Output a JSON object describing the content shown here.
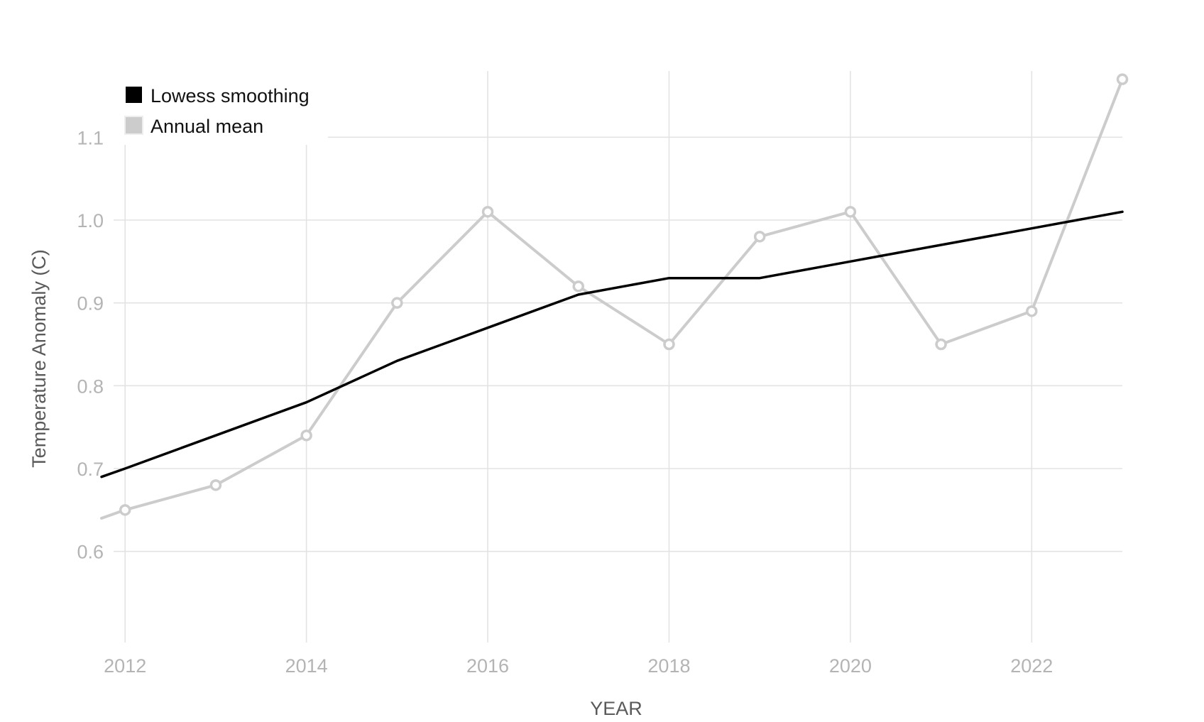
{
  "chart_data": {
    "type": "line",
    "xlabel": "YEAR",
    "ylabel": "Temperature Anomaly (C)",
    "xlim": [
      2011.74,
      2023
    ],
    "ylim": [
      0.49,
      1.18
    ],
    "x_ticks": [
      2012,
      2014,
      2016,
      2018,
      2020,
      2022
    ],
    "x_tick_labels": [
      "2012",
      "2014",
      "2016",
      "2018",
      "2020",
      "2022"
    ],
    "y_ticks": [
      0.6,
      0.7,
      0.8,
      0.9,
      1.0,
      1.1
    ],
    "y_tick_labels": [
      "0.6",
      "0.7",
      "0.8",
      "0.9",
      "1.0",
      "1.1"
    ],
    "grid": true,
    "legend": {
      "position": "top-left",
      "entries": [
        {
          "label": "Lowess smoothing",
          "color": "#000000"
        },
        {
          "label": "Annual mean",
          "color": "#cccccc"
        }
      ]
    },
    "series": [
      {
        "name": "Lowess smoothing",
        "color": "#000000",
        "markers": false,
        "x": [
          2011.74,
          2012,
          2013,
          2014,
          2015,
          2016,
          2017,
          2018,
          2019,
          2020,
          2021,
          2022,
          2023
        ],
        "y": [
          0.69,
          0.7,
          0.74,
          0.78,
          0.83,
          0.87,
          0.91,
          0.93,
          0.93,
          0.95,
          0.97,
          0.99,
          1.01
        ]
      },
      {
        "name": "Annual mean",
        "color": "#cccccc",
        "markers": true,
        "x": [
          2011.74,
          2012,
          2013,
          2014,
          2015,
          2016,
          2017,
          2018,
          2019,
          2020,
          2021,
          2022,
          2023
        ],
        "y": [
          0.64,
          0.65,
          0.68,
          0.74,
          0.9,
          1.01,
          0.92,
          0.85,
          0.98,
          1.01,
          0.85,
          0.89,
          1.17
        ]
      }
    ]
  }
}
